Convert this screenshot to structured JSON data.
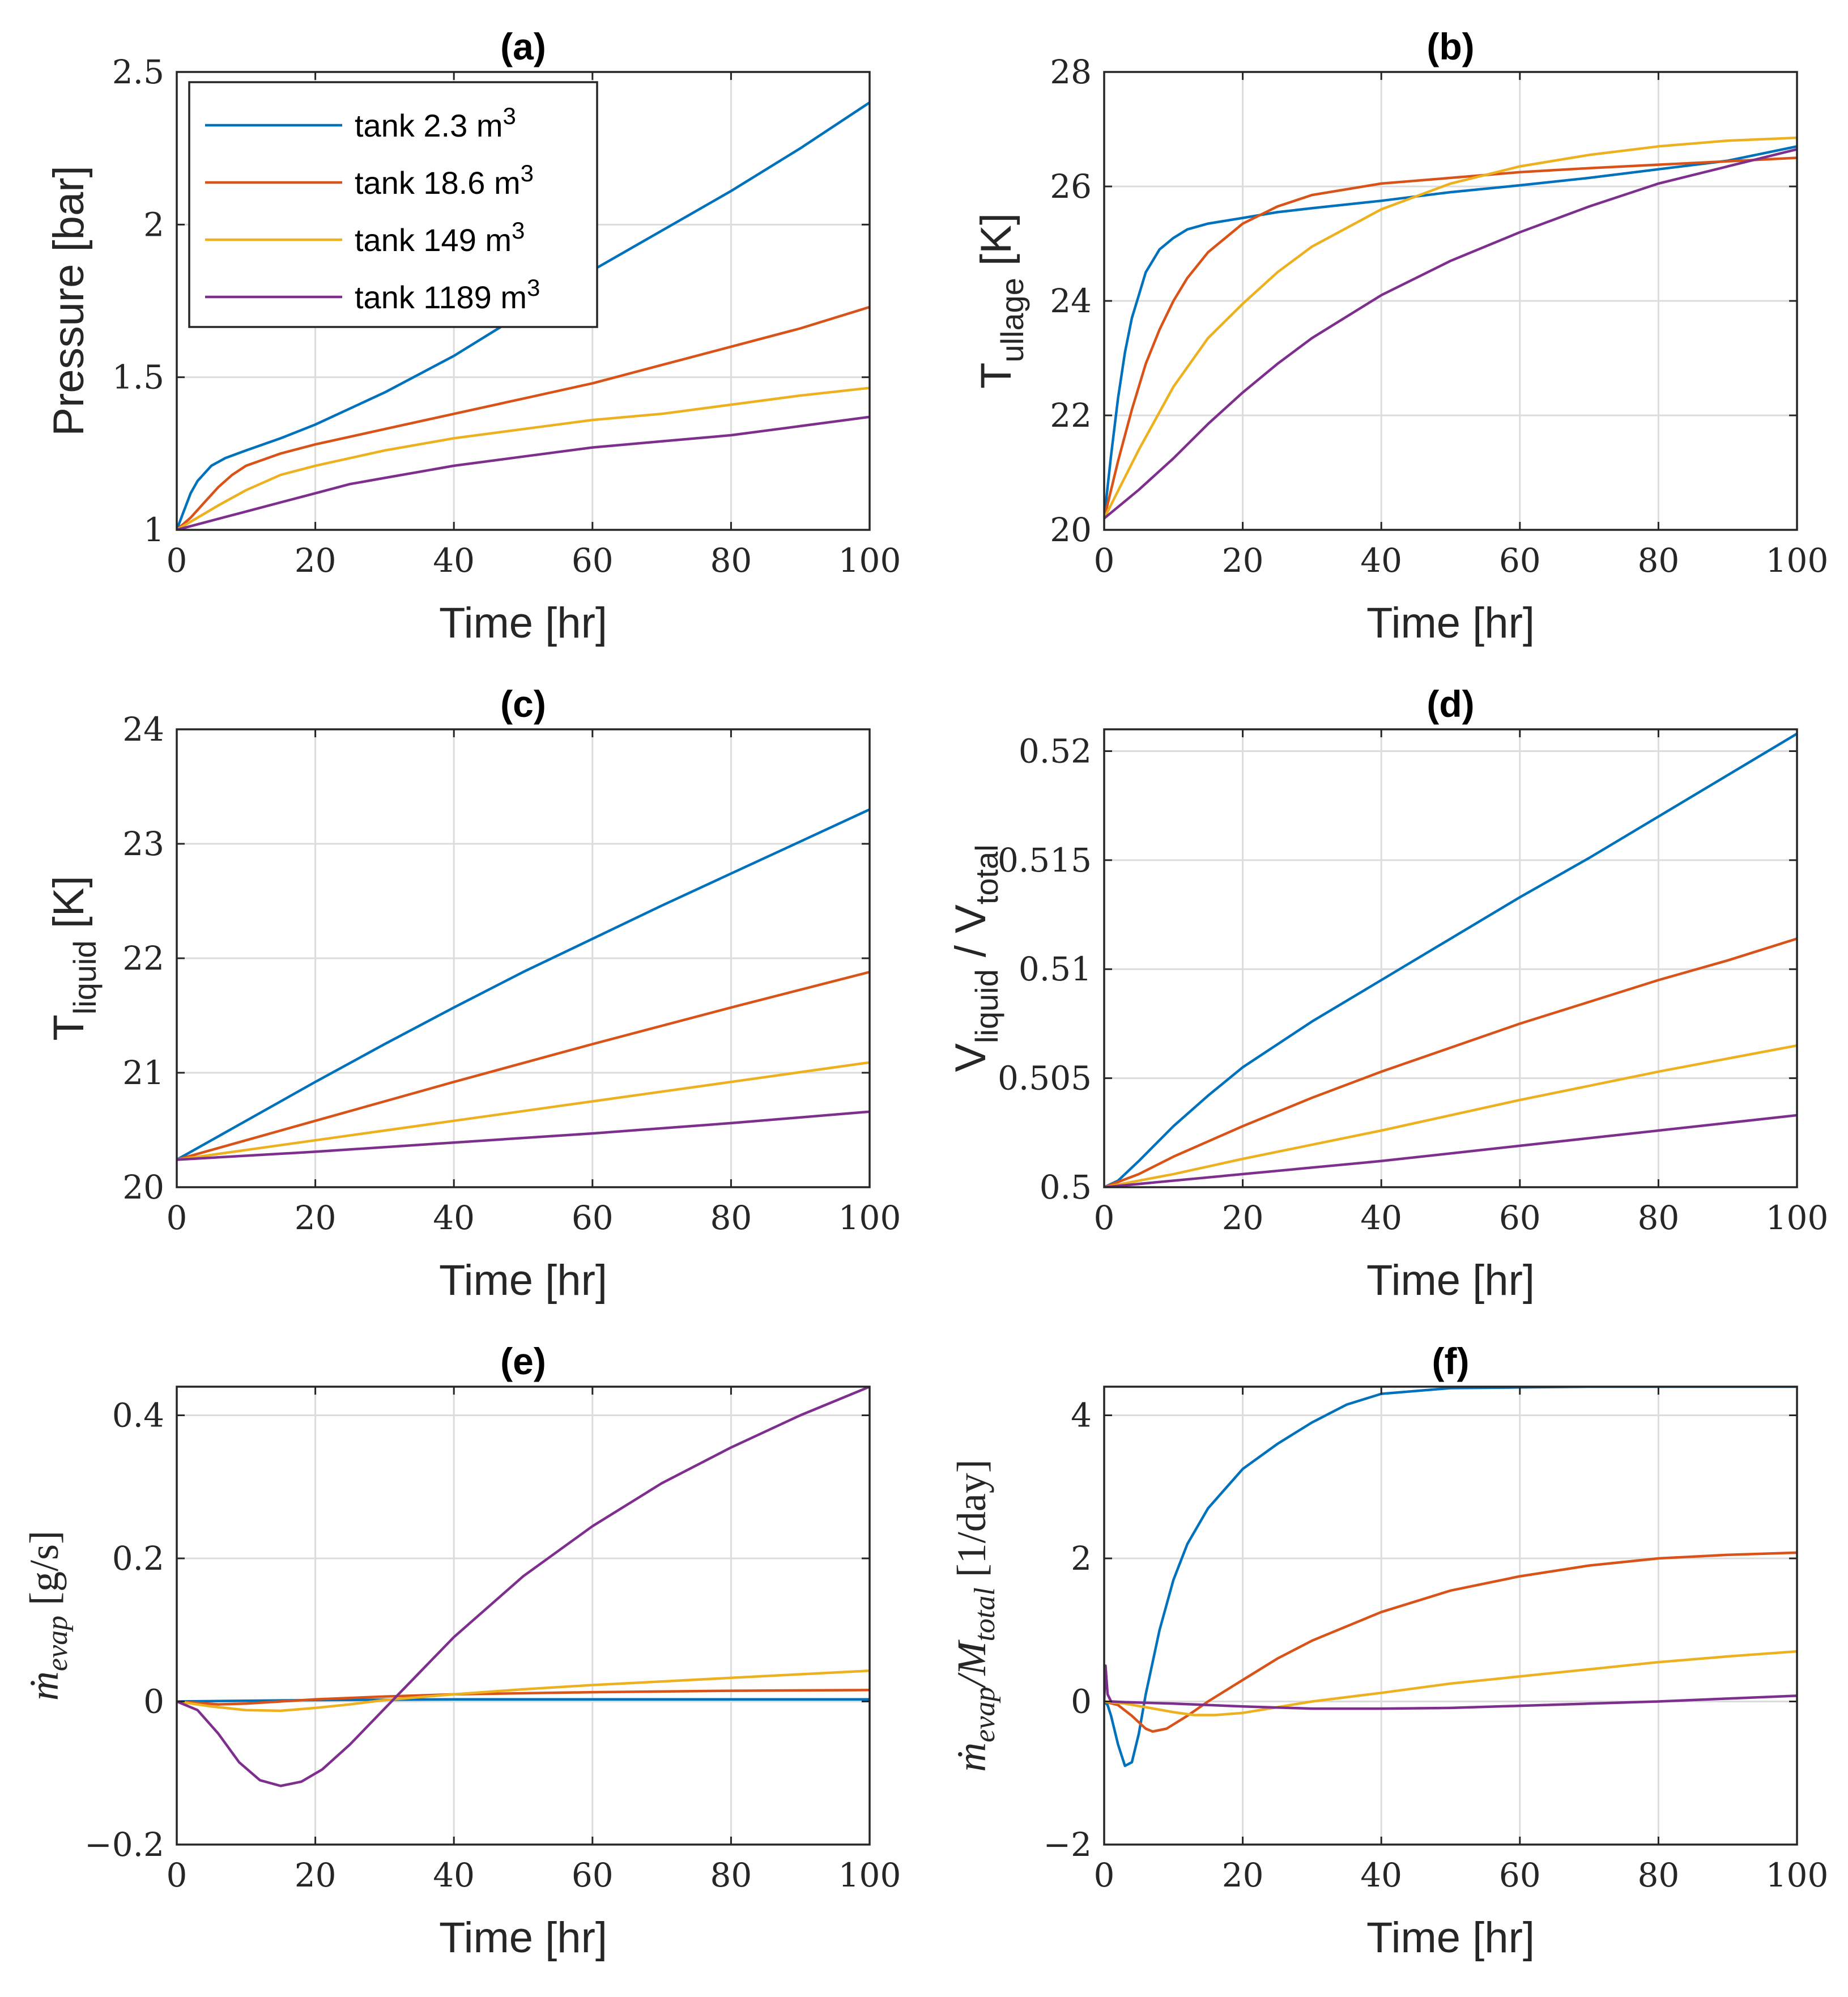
{
  "legend": {
    "entries": [
      {
        "prefix": "tank 2.3 m",
        "sup": "3",
        "color": "#0072BD"
      },
      {
        "prefix": "tank 18.6 m",
        "sup": "3",
        "color": "#D95319"
      },
      {
        "prefix": "tank 149 m",
        "sup": "3",
        "color": "#EDB120"
      },
      {
        "prefix": "tank 1189 m",
        "sup": "3",
        "color": "#7E2F8E"
      }
    ]
  },
  "chart_data": [
    {
      "id": "a",
      "type": "line",
      "title": "(a)",
      "xlabel": "Time [hr]",
      "ylabel": {
        "main": "Pressure [bar]"
      },
      "xlim": [
        0,
        100
      ],
      "ylim": [
        1,
        2.5
      ],
      "xticks": [
        "0",
        "20",
        "40",
        "60",
        "80",
        "100"
      ],
      "yticks": [
        {
          "v": 1,
          "t": "1"
        },
        {
          "v": 1.5,
          "t": "1.5"
        },
        {
          "v": 2,
          "t": "2"
        },
        {
          "v": 2.5,
          "t": "2.5"
        }
      ],
      "grid": true,
      "legend": "top-left",
      "series": [
        {
          "name": "tank 2.3 m3",
          "color": "#0072BD",
          "x": [
            0,
            1,
            2,
            3,
            5,
            7,
            10,
            15,
            20,
            30,
            40,
            50,
            60,
            70,
            80,
            90,
            100
          ],
          "y": [
            1.0,
            1.06,
            1.12,
            1.16,
            1.21,
            1.235,
            1.26,
            1.3,
            1.345,
            1.45,
            1.57,
            1.71,
            1.85,
            1.98,
            2.11,
            2.25,
            2.4
          ]
        },
        {
          "name": "tank 18.6 m3",
          "color": "#D95319",
          "x": [
            0,
            2,
            4,
            6,
            8,
            10,
            15,
            20,
            30,
            40,
            50,
            60,
            70,
            80,
            90,
            100
          ],
          "y": [
            1.0,
            1.04,
            1.09,
            1.14,
            1.18,
            1.21,
            1.25,
            1.28,
            1.33,
            1.38,
            1.43,
            1.48,
            1.54,
            1.6,
            1.66,
            1.73
          ]
        },
        {
          "name": "tank 149 m3",
          "color": "#EDB120",
          "x": [
            0,
            3,
            6,
            10,
            15,
            20,
            30,
            40,
            50,
            60,
            70,
            80,
            90,
            100
          ],
          "y": [
            1.0,
            1.04,
            1.08,
            1.13,
            1.18,
            1.21,
            1.26,
            1.3,
            1.33,
            1.36,
            1.38,
            1.41,
            1.44,
            1.465
          ]
        },
        {
          "name": "tank 1189 m3",
          "color": "#7E2F8E",
          "x": [
            0,
            5,
            10,
            15,
            20,
            25,
            30,
            40,
            50,
            60,
            70,
            80,
            90,
            100
          ],
          "y": [
            1.0,
            1.03,
            1.06,
            1.09,
            1.12,
            1.15,
            1.17,
            1.21,
            1.24,
            1.27,
            1.29,
            1.31,
            1.34,
            1.37
          ]
        }
      ]
    },
    {
      "id": "b",
      "type": "line",
      "title": "(b)",
      "xlabel": "Time [hr]",
      "ylabel": {
        "main": "T",
        "sub": "ullage",
        "tail": " [K]"
      },
      "xlim": [
        0,
        100
      ],
      "ylim": [
        20,
        28
      ],
      "xticks": [
        "0",
        "20",
        "40",
        "60",
        "80",
        "100"
      ],
      "yticks": [
        {
          "v": 20,
          "t": "20"
        },
        {
          "v": 22,
          "t": "22"
        },
        {
          "v": 24,
          "t": "24"
        },
        {
          "v": 26,
          "t": "26"
        },
        {
          "v": 28,
          "t": "28"
        }
      ],
      "grid": true,
      "series": [
        {
          "name": "tank 2.3 m3",
          "color": "#0072BD",
          "x": [
            0,
            1,
            2,
            3,
            4,
            5,
            6,
            8,
            10,
            12,
            15,
            20,
            25,
            30,
            40,
            50,
            60,
            70,
            80,
            90,
            100
          ],
          "y": [
            20.2,
            21.3,
            22.3,
            23.1,
            23.7,
            24.1,
            24.5,
            24.9,
            25.1,
            25.25,
            25.35,
            25.45,
            25.55,
            25.62,
            25.75,
            25.9,
            26.02,
            26.15,
            26.3,
            26.45,
            26.7
          ]
        },
        {
          "name": "tank 18.6 m3",
          "color": "#D95319",
          "x": [
            0,
            2,
            4,
            6,
            8,
            10,
            12,
            15,
            20,
            25,
            30,
            40,
            50,
            60,
            70,
            80,
            90,
            100
          ],
          "y": [
            20.2,
            21.2,
            22.1,
            22.9,
            23.5,
            24.0,
            24.4,
            24.85,
            25.35,
            25.65,
            25.85,
            26.05,
            26.15,
            26.25,
            26.32,
            26.38,
            26.44,
            26.5
          ]
        },
        {
          "name": "tank 149 m3",
          "color": "#EDB120",
          "x": [
            0,
            5,
            10,
            15,
            20,
            25,
            30,
            40,
            50,
            60,
            70,
            80,
            90,
            100
          ],
          "y": [
            20.2,
            21.4,
            22.5,
            23.35,
            23.95,
            24.5,
            24.95,
            25.6,
            26.05,
            26.35,
            26.55,
            26.7,
            26.8,
            26.85
          ]
        },
        {
          "name": "tank 1189 m3",
          "color": "#7E2F8E",
          "x": [
            0,
            5,
            10,
            15,
            20,
            25,
            30,
            40,
            50,
            60,
            70,
            80,
            90,
            100
          ],
          "y": [
            20.2,
            20.7,
            21.25,
            21.85,
            22.4,
            22.9,
            23.35,
            24.1,
            24.7,
            25.2,
            25.65,
            26.05,
            26.35,
            26.65
          ]
        }
      ]
    },
    {
      "id": "c",
      "type": "line",
      "title": "(c)",
      "xlabel": "Time [hr]",
      "ylabel": {
        "main": "T",
        "sub": "liquid",
        "tail": " [K]"
      },
      "xlim": [
        0,
        100
      ],
      "ylim": [
        20,
        24
      ],
      "xticks": [
        "0",
        "20",
        "40",
        "60",
        "80",
        "100"
      ],
      "yticks": [
        {
          "v": 20,
          "t": "20"
        },
        {
          "v": 21,
          "t": "21"
        },
        {
          "v": 22,
          "t": "22"
        },
        {
          "v": 23,
          "t": "23"
        },
        {
          "v": 24,
          "t": "24"
        }
      ],
      "grid": true,
      "series": [
        {
          "name": "tank 2.3 m3",
          "color": "#0072BD",
          "x": [
            0,
            10,
            20,
            30,
            40,
            50,
            60,
            70,
            80,
            90,
            100
          ],
          "y": [
            20.24,
            20.58,
            20.92,
            21.25,
            21.57,
            21.88,
            22.17,
            22.46,
            22.74,
            23.02,
            23.3
          ]
        },
        {
          "name": "tank 18.6 m3",
          "color": "#D95319",
          "x": [
            0,
            20,
            40,
            60,
            80,
            100
          ],
          "y": [
            20.24,
            20.58,
            20.92,
            21.25,
            21.57,
            21.88
          ]
        },
        {
          "name": "tank 149 m3",
          "color": "#EDB120",
          "x": [
            0,
            20,
            40,
            60,
            80,
            100
          ],
          "y": [
            20.24,
            20.41,
            20.58,
            20.75,
            20.92,
            21.09
          ]
        },
        {
          "name": "tank 1189 m3",
          "color": "#7E2F8E",
          "x": [
            0,
            20,
            40,
            60,
            80,
            100
          ],
          "y": [
            20.24,
            20.31,
            20.39,
            20.47,
            20.56,
            20.66
          ]
        }
      ]
    },
    {
      "id": "d",
      "type": "line",
      "title": "(d)",
      "xlabel": "Time [hr]",
      "ylabel": {
        "main": "V",
        "sub": "liquid",
        "mid": " / V",
        "sub2": "total"
      },
      "xlim": [
        0,
        100
      ],
      "ylim": [
        0.5,
        0.521
      ],
      "xticks": [
        "0",
        "20",
        "40",
        "60",
        "80",
        "100"
      ],
      "yticks": [
        {
          "v": 0.5,
          "t": "0.5"
        },
        {
          "v": 0.505,
          "t": "0.505"
        },
        {
          "v": 0.51,
          "t": "0.51"
        },
        {
          "v": 0.515,
          "t": "0.515"
        },
        {
          "v": 0.52,
          "t": "0.52"
        }
      ],
      "grid": true,
      "series": [
        {
          "name": "tank 2.3 m3",
          "color": "#0072BD",
          "x": [
            0,
            2,
            5,
            10,
            15,
            20,
            30,
            40,
            50,
            60,
            70,
            80,
            90,
            100
          ],
          "y": [
            0.5,
            0.5003,
            0.5012,
            0.5028,
            0.5042,
            0.5055,
            0.5076,
            0.5095,
            0.5114,
            0.5133,
            0.5151,
            0.517,
            0.5189,
            0.5208
          ]
        },
        {
          "name": "tank 18.6 m3",
          "color": "#D95319",
          "x": [
            0,
            5,
            10,
            20,
            30,
            40,
            50,
            60,
            70,
            80,
            90,
            100
          ],
          "y": [
            0.5,
            0.5006,
            0.5014,
            0.5028,
            0.5041,
            0.5053,
            0.5064,
            0.5075,
            0.5085,
            0.5095,
            0.5104,
            0.5114
          ]
        },
        {
          "name": "tank 149 m3",
          "color": "#EDB120",
          "x": [
            0,
            10,
            20,
            40,
            60,
            80,
            100
          ],
          "y": [
            0.5,
            0.5006,
            0.5013,
            0.5026,
            0.504,
            0.5053,
            0.5065
          ]
        },
        {
          "name": "tank 1189 m3",
          "color": "#7E2F8E",
          "x": [
            0,
            20,
            40,
            60,
            80,
            100
          ],
          "y": [
            0.5,
            0.5006,
            0.5012,
            0.5019,
            0.5026,
            0.5033
          ]
        }
      ]
    },
    {
      "id": "e",
      "type": "line",
      "title": "(e)",
      "xlabel": "Time [hr]",
      "ylabel": {
        "math": "ṁ",
        "mathsub": "evap",
        "tail": " [g/s]"
      },
      "xlim": [
        0,
        100
      ],
      "ylim": [
        -0.2,
        0.44
      ],
      "xticks": [
        "0",
        "20",
        "40",
        "60",
        "80",
        "100"
      ],
      "yticks": [
        {
          "v": -0.2,
          "t": "−0.2"
        },
        {
          "v": 0,
          "t": "0"
        },
        {
          "v": 0.2,
          "t": "0.2"
        },
        {
          "v": 0.4,
          "t": "0.4"
        }
      ],
      "grid": true,
      "series": [
        {
          "name": "tank 2.3 m3",
          "color": "#0072BD",
          "x": [
            0,
            5,
            10,
            20,
            40,
            60,
            80,
            100
          ],
          "y": [
            0,
            0.0005,
            0.001,
            0.002,
            0.003,
            0.003,
            0.003,
            0.003
          ]
        },
        {
          "name": "tank 18.6 m3",
          "color": "#D95319",
          "x": [
            0,
            3,
            6,
            10,
            15,
            20,
            30,
            40,
            60,
            80,
            100
          ],
          "y": [
            0,
            -0.002,
            -0.004,
            -0.003,
            0,
            0.003,
            0.007,
            0.01,
            0.013,
            0.015,
            0.016
          ]
        },
        {
          "name": "tank 149 m3",
          "color": "#EDB120",
          "x": [
            0,
            5,
            10,
            15,
            20,
            25,
            30,
            40,
            50,
            60,
            70,
            80,
            90,
            100
          ],
          "y": [
            0,
            -0.007,
            -0.012,
            -0.013,
            -0.009,
            -0.004,
            0.002,
            0.01,
            0.017,
            0.023,
            0.028,
            0.033,
            0.038,
            0.043
          ]
        },
        {
          "name": "tank 1189 m3",
          "color": "#7E2F8E",
          "x": [
            0,
            3,
            6,
            9,
            12,
            15,
            18,
            21,
            25,
            30,
            35,
            40,
            50,
            60,
            70,
            80,
            90,
            100
          ],
          "y": [
            0,
            -0.012,
            -0.045,
            -0.085,
            -0.11,
            -0.118,
            -0.112,
            -0.095,
            -0.06,
            -0.01,
            0.04,
            0.09,
            0.175,
            0.245,
            0.305,
            0.355,
            0.4,
            0.44
          ]
        }
      ]
    },
    {
      "id": "f",
      "type": "line",
      "title": "(f)",
      "xlabel": "Time [hr]",
      "ylabel": {
        "math": "ṁ",
        "mathsub": "evap",
        "mid": "/M",
        "mathsub2": "total",
        "tail": " [1/day]"
      },
      "xlim": [
        0,
        100
      ],
      "ylim": [
        -2,
        4.4
      ],
      "xticks": [
        "0",
        "20",
        "40",
        "60",
        "80",
        "100"
      ],
      "yticks": [
        {
          "v": -2,
          "t": "−2"
        },
        {
          "v": 0,
          "t": "0"
        },
        {
          "v": 2,
          "t": "2"
        },
        {
          "v": 4,
          "t": "4"
        }
      ],
      "grid": true,
      "series": [
        {
          "name": "tank 2.3 m3",
          "color": "#0072BD",
          "x": [
            0,
            0.5,
            1,
            2,
            3,
            4,
            5,
            6,
            8,
            10,
            12,
            15,
            20,
            25,
            30,
            35,
            40,
            50,
            60,
            70,
            80,
            90,
            100
          ],
          "y": [
            0,
            -0.05,
            -0.2,
            -0.6,
            -0.9,
            -0.85,
            -0.45,
            0.1,
            1.0,
            1.7,
            2.2,
            2.7,
            3.25,
            3.6,
            3.9,
            4.15,
            4.3,
            4.38,
            4.39,
            4.4,
            4.4,
            4.4,
            4.4
          ]
        },
        {
          "name": "tank 18.6 m3",
          "color": "#D95319",
          "x": [
            0,
            2,
            4,
            6,
            7,
            9,
            12,
            15,
            20,
            25,
            30,
            40,
            50,
            60,
            70,
            80,
            90,
            100
          ],
          "y": [
            0,
            -0.05,
            -0.2,
            -0.38,
            -0.42,
            -0.38,
            -0.2,
            0,
            0.3,
            0.6,
            0.85,
            1.25,
            1.55,
            1.75,
            1.9,
            2.0,
            2.05,
            2.08
          ]
        },
        {
          "name": "tank 149 m3",
          "color": "#EDB120",
          "x": [
            0,
            3,
            6,
            10,
            13,
            16,
            20,
            25,
            30,
            40,
            50,
            60,
            70,
            80,
            90,
            100
          ],
          "y": [
            0,
            -0.03,
            -0.08,
            -0.15,
            -0.19,
            -0.19,
            -0.16,
            -0.08,
            0,
            0.12,
            0.25,
            0.35,
            0.45,
            0.55,
            0.63,
            0.7
          ]
        },
        {
          "name": "tank 1189 m3",
          "color": "#7E2F8E",
          "x": [
            0,
            0.2,
            0.5,
            1,
            3,
            10,
            20,
            30,
            40,
            50,
            60,
            70,
            80,
            90,
            100
          ],
          "y": [
            0,
            0.5,
            0.1,
            0,
            -0.01,
            -0.03,
            -0.07,
            -0.1,
            -0.1,
            -0.09,
            -0.06,
            -0.03,
            0,
            0.04,
            0.08
          ]
        }
      ]
    }
  ]
}
